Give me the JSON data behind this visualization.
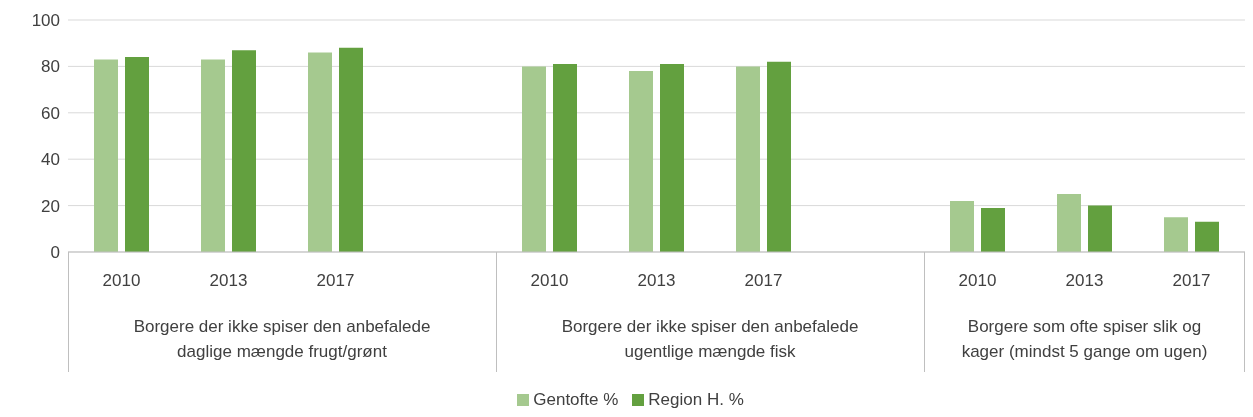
{
  "chart_data": {
    "type": "bar",
    "categories": [
      "2010",
      "2013",
      "2017",
      null,
      "2010",
      "2013",
      "2017",
      null,
      "2010",
      "2013",
      "2017"
    ],
    "series": [
      {
        "name": "Gentofte %",
        "color": "#a5c98f",
        "values": [
          83,
          83,
          86,
          null,
          80,
          78,
          80,
          null,
          22,
          25,
          15
        ]
      },
      {
        "name": "Region H. %",
        "color": "#63a03f",
        "values": [
          84,
          87,
          88,
          null,
          81,
          81,
          82,
          null,
          19,
          20,
          13
        ]
      }
    ],
    "annotations": [
      "Borgere der ikke spiser den anbefalede\ndaglige mængde frugt/grønt",
      "Borgere der ikke spiser den anbefalede\nugentlige mængde fisk",
      "Borgere som ofte spiser slik og\nkager (mindst 5 gange om ugen)"
    ],
    "ylim": [
      0,
      100
    ],
    "yticks": [
      0,
      20,
      40,
      60,
      80,
      100
    ],
    "grid": "y",
    "legend": "bottom"
  }
}
